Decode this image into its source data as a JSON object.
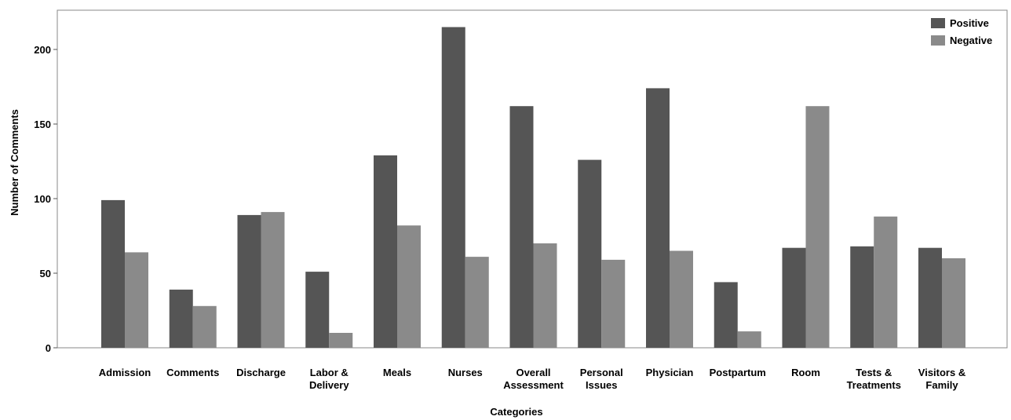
{
  "chart_data": {
    "type": "bar",
    "title": "",
    "xlabel": "Categories",
    "ylabel": "Number of Comments",
    "ylim": [
      0,
      225
    ],
    "yticks": [
      0,
      50,
      100,
      150,
      200
    ],
    "grid": false,
    "legend_position": "top-right",
    "categories": [
      "Admission",
      "Comments",
      "Discharge",
      "Labor & Delivery",
      "Meals",
      "Nurses",
      "Overall Assessment",
      "Personal Issues",
      "Physician",
      "Postpartum",
      "Room",
      "Tests & Treatments",
      "Visitors & Family"
    ],
    "category_label_lines": [
      [
        "Admission"
      ],
      [
        "Comments"
      ],
      [
        "Discharge"
      ],
      [
        "Labor &",
        "Delivery"
      ],
      [
        "Meals"
      ],
      [
        "Nurses"
      ],
      [
        "Overall",
        "Assessment"
      ],
      [
        "Personal",
        "Issues"
      ],
      [
        "Physician"
      ],
      [
        "Postpartum"
      ],
      [
        "Room"
      ],
      [
        "Tests &",
        "Treatments"
      ],
      [
        "Visitors &",
        "Family"
      ]
    ],
    "series": [
      {
        "name": "Positive",
        "color": "#555555",
        "values": [
          99,
          39,
          89,
          51,
          129,
          215,
          162,
          126,
          174,
          44,
          67,
          68,
          67
        ]
      },
      {
        "name": "Negative",
        "color": "#8a8a8a",
        "values": [
          64,
          28,
          91,
          10,
          82,
          61,
          70,
          59,
          65,
          11,
          162,
          88,
          60
        ]
      }
    ]
  }
}
